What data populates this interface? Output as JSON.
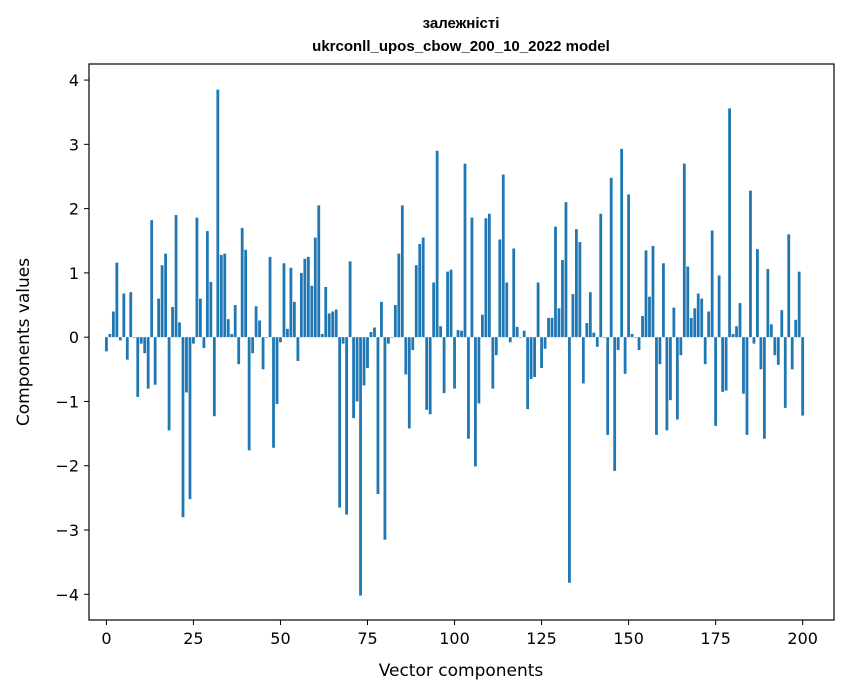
{
  "chart_data": {
    "type": "bar",
    "title_line1": "залежністі",
    "title_line2": "ukrconll_upos_cbow_200_10_2022 model",
    "xlabel": "Vector components",
    "ylabel": "Components values",
    "xlim": [
      -5,
      209
    ],
    "ylim": [
      -4.4,
      4.25
    ],
    "xticks": [
      0,
      25,
      50,
      75,
      100,
      125,
      150,
      175,
      200
    ],
    "xtick_labels": [
      "0",
      "25",
      "50",
      "75",
      "100",
      "125",
      "150",
      "175",
      "200"
    ],
    "yticks": [
      -4,
      -3,
      -2,
      -1,
      0,
      1,
      2,
      3,
      4
    ],
    "ytick_labels": [
      "−4",
      "−3",
      "−2",
      "−1",
      "0",
      "1",
      "2",
      "3",
      "4"
    ],
    "bar_color": "#1f77b4",
    "values": [
      -0.22,
      0.05,
      0.4,
      1.16,
      -0.05,
      0.68,
      -0.35,
      0.7,
      0.0,
      -0.93,
      -0.1,
      -0.25,
      -0.8,
      1.82,
      -0.74,
      0.6,
      1.12,
      1.3,
      -1.45,
      0.47,
      1.9,
      0.23,
      -2.8,
      -0.86,
      -2.52,
      -0.1,
      1.86,
      0.6,
      -0.17,
      1.65,
      0.86,
      -1.23,
      3.85,
      1.28,
      1.3,
      0.28,
      0.05,
      0.5,
      -0.42,
      1.7,
      1.36,
      -1.76,
      -0.25,
      0.48,
      0.26,
      -0.5,
      0.0,
      1.25,
      -1.72,
      -1.04,
      -0.08,
      1.15,
      0.13,
      1.08,
      0.55,
      -0.37,
      1.0,
      1.22,
      1.25,
      0.8,
      1.55,
      2.05,
      0.05,
      0.78,
      0.37,
      0.4,
      0.43,
      -2.65,
      -0.1,
      -2.76,
      1.18,
      -1.26,
      -1.0,
      -4.02,
      -0.75,
      -0.48,
      0.08,
      0.15,
      -2.44,
      0.55,
      -3.15,
      -0.1,
      0.0,
      0.5,
      1.3,
      2.05,
      -0.58,
      -1.42,
      -0.2,
      1.12,
      1.45,
      1.55,
      -1.13,
      -1.2,
      0.85,
      2.9,
      0.17,
      -0.87,
      1.02,
      1.05,
      -0.8,
      0.11,
      0.1,
      2.7,
      -1.58,
      1.86,
      -2.01,
      -1.03,
      0.35,
      1.85,
      1.92,
      -0.8,
      -0.28,
      1.52,
      2.53,
      0.85,
      -0.08,
      1.38,
      0.16,
      0.0,
      0.1,
      -1.12,
      -0.65,
      -0.62,
      0.85,
      -0.48,
      -0.18,
      0.3,
      0.3,
      1.72,
      0.45,
      1.2,
      2.1,
      -3.82,
      0.67,
      1.68,
      1.48,
      -0.72,
      0.22,
      0.7,
      0.07,
      -0.15,
      1.92,
      0.0,
      -1.52,
      2.48,
      -2.08,
      -0.2,
      2.93,
      -0.57,
      2.22,
      0.05,
      0.0,
      -0.2,
      0.33,
      1.35,
      0.63,
      1.42,
      -1.52,
      -0.42,
      1.15,
      -1.45,
      -0.98,
      0.46,
      -1.28,
      -0.28,
      2.7,
      1.1,
      0.3,
      0.45,
      0.68,
      0.6,
      -0.42,
      0.4,
      1.66,
      -1.38,
      0.96,
      -0.85,
      -0.83,
      3.56,
      0.05,
      0.17,
      0.53,
      -0.88,
      -1.52,
      2.28,
      -0.1,
      1.37,
      -0.5,
      -1.58,
      1.06,
      0.2,
      -0.28,
      -0.43,
      0.42,
      -1.1,
      1.6,
      -0.5,
      0.27,
      1.02,
      -1.22
    ]
  }
}
